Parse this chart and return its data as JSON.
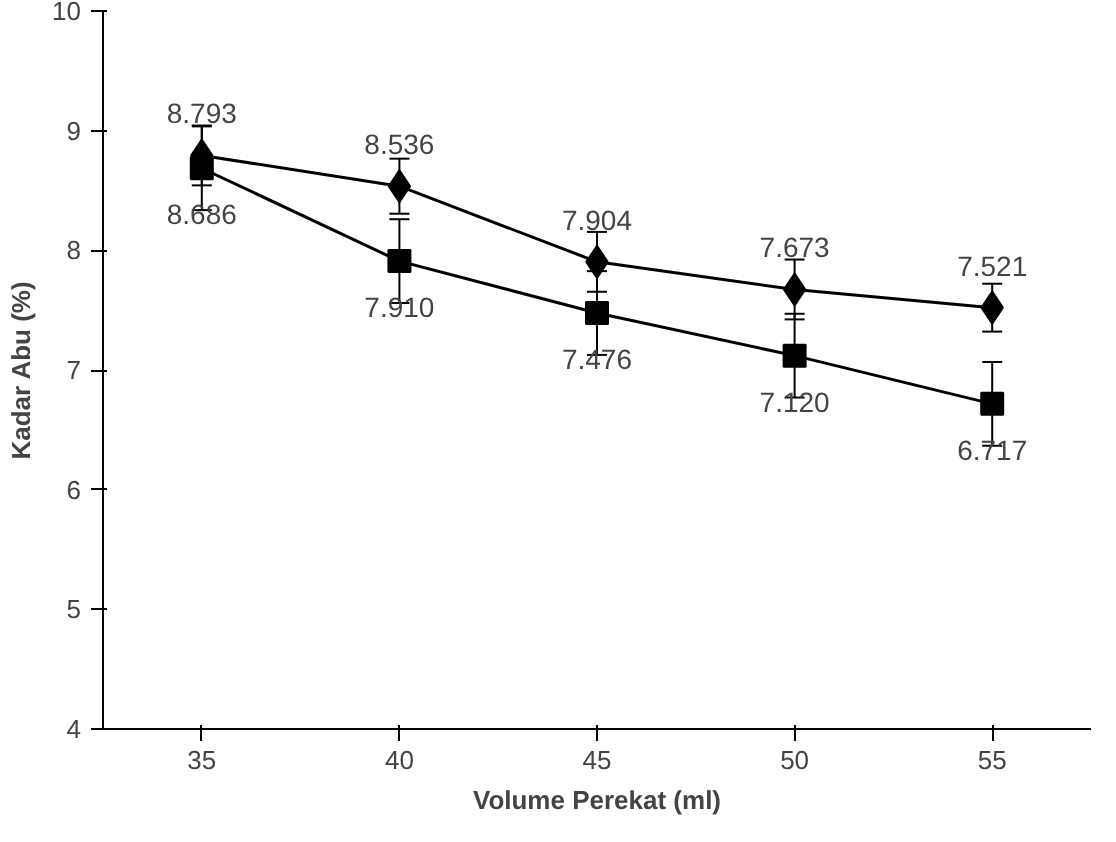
{
  "chart_data": {
    "type": "line",
    "xlabel": "Volume Perekat (ml)",
    "ylabel": "Kadar Abu (%)",
    "categories": [
      "35",
      "40",
      "45",
      "50",
      "55"
    ],
    "ylim": [
      4,
      10
    ],
    "yticks": [
      4,
      5,
      6,
      7,
      8,
      9,
      10
    ],
    "grid": false,
    "series": [
      {
        "color": "#000000",
        "marker": "diamond",
        "values": [
          8.793,
          8.536,
          7.904,
          7.673,
          7.521
        ],
        "value_labels": [
          "8.793",
          "8.536",
          "7.904",
          "7.673",
          "7.521"
        ],
        "errors": [
          0.25,
          0.23,
          0.25,
          0.25,
          0.2
        ]
      },
      {
        "color": "#000000",
        "marker": "square",
        "values": [
          8.686,
          7.91,
          7.476,
          7.12,
          6.717
        ],
        "value_labels": [
          "8.686",
          "7.910",
          "7.476",
          "7.120",
          "6.717"
        ],
        "errors": [
          0.35,
          0.35,
          0.35,
          0.35,
          0.35
        ]
      }
    ]
  }
}
